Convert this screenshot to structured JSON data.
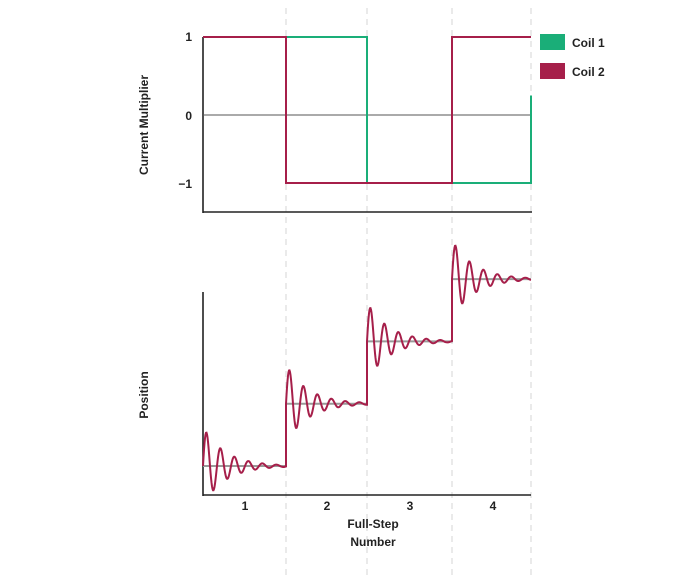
{
  "chart_data": [
    {
      "type": "line",
      "ylabel": "Current Multiplier",
      "yticks": [
        "1",
        "0",
        "−1"
      ],
      "ylim": [
        -1.4,
        1.1
      ],
      "x": [
        0.5,
        1.5,
        2.5,
        3.5,
        4.45
      ],
      "step_boundaries": [
        1.5,
        2.5,
        3.5,
        4.45
      ],
      "grid": "dashed vertical lines at step boundaries",
      "legend": "top-right",
      "series": [
        {
          "name": "Coil 1",
          "color": "#1aae78",
          "steps": [
            [
              0.5,
              1
            ],
            [
              1.5,
              1
            ],
            [
              2.5,
              -1
            ],
            [
              3.5,
              -1
            ],
            [
              4.45,
              0.25
            ]
          ]
        },
        {
          "name": "Coil 2",
          "color": "#a61f4a",
          "steps": [
            [
              0.5,
              1
            ],
            [
              1.5,
              -1
            ],
            [
              2.5,
              -1
            ],
            [
              3.5,
              1
            ],
            [
              4.45,
              1
            ]
          ]
        }
      ]
    },
    {
      "type": "line",
      "ylabel": "Position",
      "xlabel": "Full-Step Number",
      "xlabel_lines": [
        "Full-Step",
        "Number"
      ],
      "categories": [
        "1",
        "2",
        "3",
        "4"
      ],
      "step_levels": [
        1,
        2,
        3,
        4
      ],
      "series": [
        {
          "role": "ideal position",
          "color": "#999999"
        },
        {
          "role": "actual position (damped ringing)",
          "color": "#a61f4a",
          "first_overshoot_fraction": 0.6
        }
      ]
    }
  ]
}
